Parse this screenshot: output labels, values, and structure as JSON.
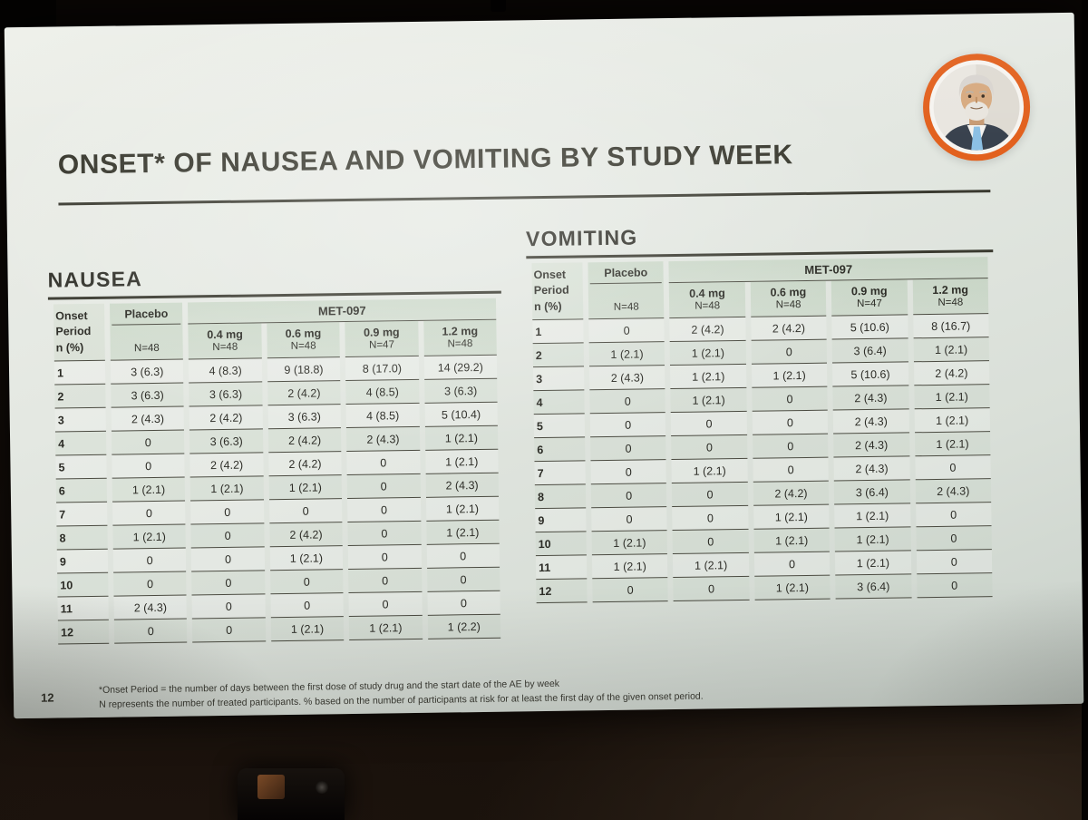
{
  "slide": {
    "page_number": "12",
    "title": "ONSET* OF NAUSEA AND VOMITING BY STUDY WEEK",
    "footnotes": [
      "*Onset Period = the number of days between the first dose of study drug and the start date of the AE by week",
      "N represents the number of treated participants. % based on the number of participants at risk for at least the first day of the given onset period."
    ]
  },
  "colors": {
    "avatar_ring_orange": "#e2611e",
    "slide_background": "#e4e8e2",
    "text_dark": "#32322a",
    "table_line": "#4a4a40",
    "header_green_tint": "#cfdecb"
  },
  "tables": [
    {
      "title": "NAUSEA",
      "row_header": {
        "line1": "Onset",
        "line2": "Period",
        "line3": "n (%)"
      },
      "placebo": {
        "label": "Placebo",
        "n": "N=48"
      },
      "group_label": "MET-097",
      "doses": [
        {
          "label": "0.4 mg",
          "n": "N=48"
        },
        {
          "label": "0.6 mg",
          "n": "N=48"
        },
        {
          "label": "0.9 mg",
          "n": "N=47"
        },
        {
          "label": "1.2 mg",
          "n": "N=48"
        }
      ],
      "rows": [
        {
          "period": "1",
          "values": [
            "3 (6.3)",
            "4 (8.3)",
            "9 (18.8)",
            "8 (17.0)",
            "14 (29.2)"
          ]
        },
        {
          "period": "2",
          "values": [
            "3 (6.3)",
            "3 (6.3)",
            "2 (4.2)",
            "4 (8.5)",
            "3 (6.3)"
          ]
        },
        {
          "period": "3",
          "values": [
            "2 (4.3)",
            "2 (4.2)",
            "3 (6.3)",
            "4 (8.5)",
            "5 (10.4)"
          ]
        },
        {
          "period": "4",
          "values": [
            "0",
            "3 (6.3)",
            "2 (4.2)",
            "2 (4.3)",
            "1 (2.1)"
          ]
        },
        {
          "period": "5",
          "values": [
            "0",
            "2 (4.2)",
            "2 (4.2)",
            "0",
            "1 (2.1)"
          ]
        },
        {
          "period": "6",
          "values": [
            "1 (2.1)",
            "1 (2.1)",
            "1 (2.1)",
            "0",
            "2 (4.3)"
          ]
        },
        {
          "period": "7",
          "values": [
            "0",
            "0",
            "0",
            "0",
            "1 (2.1)"
          ]
        },
        {
          "period": "8",
          "values": [
            "1 (2.1)",
            "0",
            "2 (4.2)",
            "0",
            "1 (2.1)"
          ]
        },
        {
          "period": "9",
          "values": [
            "0",
            "0",
            "1 (2.1)",
            "0",
            "0"
          ]
        },
        {
          "period": "10",
          "values": [
            "0",
            "0",
            "0",
            "0",
            "0"
          ]
        },
        {
          "period": "11",
          "values": [
            "2 (4.3)",
            "0",
            "0",
            "0",
            "0"
          ]
        },
        {
          "period": "12",
          "values": [
            "0",
            "0",
            "1 (2.1)",
            "1 (2.1)",
            "1 (2.2)"
          ]
        }
      ]
    },
    {
      "title": "VOMITING",
      "row_header": {
        "line1": "Onset",
        "line2": "Period",
        "line3": "n (%)"
      },
      "placebo": {
        "label": "Placebo",
        "n": "N=48"
      },
      "group_label": "MET-097",
      "doses": [
        {
          "label": "0.4 mg",
          "n": "N=48"
        },
        {
          "label": "0.6 mg",
          "n": "N=48"
        },
        {
          "label": "0.9 mg",
          "n": "N=47"
        },
        {
          "label": "1.2 mg",
          "n": "N=48"
        }
      ],
      "rows": [
        {
          "period": "1",
          "values": [
            "0",
            "2 (4.2)",
            "2 (4.2)",
            "5 (10.6)",
            "8 (16.7)"
          ]
        },
        {
          "period": "2",
          "values": [
            "1 (2.1)",
            "1 (2.1)",
            "0",
            "3 (6.4)",
            "1 (2.1)"
          ]
        },
        {
          "period": "3",
          "values": [
            "2 (4.3)",
            "1 (2.1)",
            "1 (2.1)",
            "5 (10.6)",
            "2 (4.2)"
          ]
        },
        {
          "period": "4",
          "values": [
            "0",
            "1 (2.1)",
            "0",
            "2 (4.3)",
            "1 (2.1)"
          ]
        },
        {
          "period": "5",
          "values": [
            "0",
            "0",
            "0",
            "2 (4.3)",
            "1 (2.1)"
          ]
        },
        {
          "period": "6",
          "values": [
            "0",
            "0",
            "0",
            "2 (4.3)",
            "1 (2.1)"
          ]
        },
        {
          "period": "7",
          "values": [
            "0",
            "1 (2.1)",
            "0",
            "2 (4.3)",
            "0"
          ]
        },
        {
          "period": "8",
          "values": [
            "0",
            "0",
            "2 (4.2)",
            "3 (6.4)",
            "2 (4.3)"
          ]
        },
        {
          "period": "9",
          "values": [
            "0",
            "0",
            "1 (2.1)",
            "1 (2.1)",
            "0"
          ]
        },
        {
          "period": "10",
          "values": [
            "1 (2.1)",
            "0",
            "1 (2.1)",
            "1 (2.1)",
            "0"
          ]
        },
        {
          "period": "11",
          "values": [
            "1 (2.1)",
            "1 (2.1)",
            "0",
            "1 (2.1)",
            "0"
          ]
        },
        {
          "period": "12",
          "values": [
            "0",
            "0",
            "1 (2.1)",
            "3 (6.4)",
            "0"
          ]
        }
      ]
    }
  ]
}
